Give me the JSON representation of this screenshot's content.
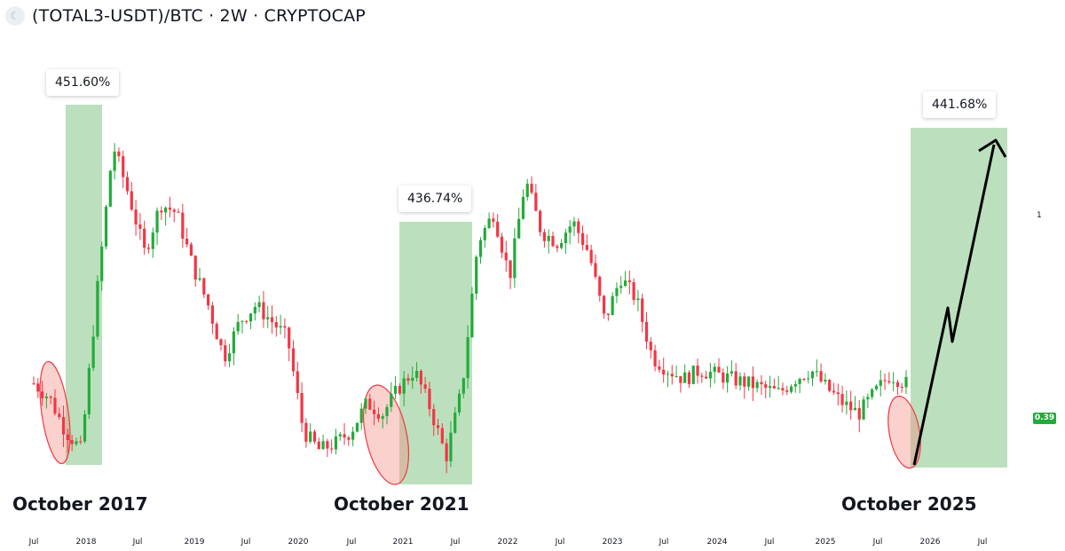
{
  "header": {
    "logo_icon": "cryptocap-logo",
    "title": "(TOTAL3-USDT)/BTC · 2W · CRYPTOCAP"
  },
  "labels": {
    "era1": "October 2017",
    "era2": "October 2021",
    "era3": "October 2025"
  },
  "boxes": {
    "pct1": "451.60%",
    "pct2": "436.74%",
    "pct3": "441.68%"
  },
  "price_badge": "0.39",
  "colors": {
    "up": "#22ab3a",
    "down": "#f23645",
    "highlight_green": "#a5d6a7",
    "highlight_red": "#f28b82",
    "arrow": "#000000"
  },
  "chart_data": {
    "type": "candlestick",
    "title": "(TOTAL3-USDT)/BTC · 2W · CRYPTOCAP",
    "x_ticks": [
      "Jul",
      "2018",
      "Jul",
      "2019",
      "Jul",
      "2020",
      "Jul",
      "2021",
      "Jul",
      "2022",
      "Jul",
      "2023",
      "Jul",
      "2024",
      "Jul",
      "2025",
      "Jul",
      "2026",
      "Jul"
    ],
    "y_ticks": [
      "1"
    ],
    "y_axis_scale": "log",
    "last_value": 0.39,
    "series_path_closes": [
      0.39,
      0.36,
      0.3,
      0.27,
      0.65,
      1.45,
      1.1,
      0.8,
      1.05,
      1.0,
      0.75,
      0.6,
      0.45,
      0.55,
      0.6,
      0.55,
      0.5,
      0.3,
      0.27,
      0.28,
      0.3,
      0.35,
      0.33,
      0.38,
      0.42,
      0.34,
      0.26,
      0.38,
      0.85,
      1.0,
      0.7,
      1.2,
      0.9,
      0.85,
      0.95,
      0.8,
      0.55,
      0.7,
      0.62,
      0.45,
      0.42,
      0.4,
      0.42,
      0.41,
      0.4,
      0.39,
      0.38,
      0.37,
      0.4,
      0.42,
      0.38,
      0.35,
      0.33,
      0.37,
      0.41,
      0.39
    ],
    "annotations": [
      {
        "text": "October 2017",
        "gain": "451.60%"
      },
      {
        "text": "October 2021",
        "gain": "436.74%"
      },
      {
        "text": "October 2025",
        "projected_gain": "441.68%"
      }
    ]
  }
}
